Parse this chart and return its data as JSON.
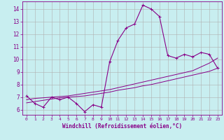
{
  "xlabel": "Windchill (Refroidissement éolien,°C)",
  "background_color": "#c8eef0",
  "grid_color": "#b0b0b0",
  "line_color": "#880088",
  "x_hours": [
    0,
    1,
    2,
    3,
    4,
    5,
    6,
    7,
    8,
    9,
    10,
    11,
    12,
    13,
    14,
    15,
    16,
    17,
    18,
    19,
    20,
    21,
    22,
    23
  ],
  "y_main": [
    7.1,
    6.5,
    6.2,
    7.0,
    6.8,
    7.0,
    6.5,
    5.85,
    6.4,
    6.2,
    9.8,
    11.5,
    12.5,
    12.8,
    14.3,
    14.0,
    13.4,
    10.3,
    10.1,
    10.4,
    10.2,
    10.55,
    10.4,
    9.3
  ],
  "y_lin1": [
    6.55,
    6.65,
    6.75,
    6.85,
    6.95,
    7.0,
    7.05,
    7.1,
    7.2,
    7.3,
    7.4,
    7.55,
    7.65,
    7.75,
    7.9,
    8.0,
    8.15,
    8.3,
    8.45,
    8.6,
    8.75,
    8.9,
    9.05,
    9.3
  ],
  "y_lin2": [
    6.8,
    6.9,
    6.95,
    7.0,
    7.05,
    7.1,
    7.2,
    7.3,
    7.4,
    7.5,
    7.6,
    7.75,
    7.9,
    8.05,
    8.2,
    8.35,
    8.5,
    8.65,
    8.8,
    8.95,
    9.1,
    9.4,
    9.7,
    10.1
  ],
  "ylim": [
    5.6,
    14.6
  ],
  "yticks": [
    6,
    7,
    8,
    9,
    10,
    11,
    12,
    13,
    14
  ],
  "xticks": [
    0,
    1,
    2,
    3,
    4,
    5,
    6,
    7,
    8,
    9,
    10,
    11,
    12,
    13,
    14,
    15,
    16,
    17,
    18,
    19,
    20,
    21,
    22,
    23
  ],
  "ylabel_fontsize": 5.5,
  "tick_fontsize": 5.5
}
